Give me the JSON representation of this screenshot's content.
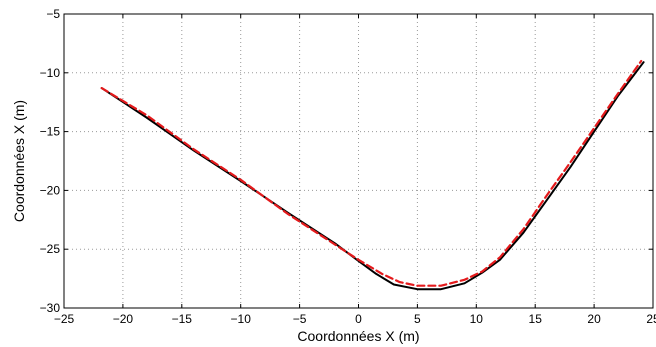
{
  "chart_data": {
    "type": "line",
    "title": "",
    "xlabel": "Coordonnées X (m)",
    "ylabel": "Coordonnées X (m)",
    "xlim": [
      -25,
      25
    ],
    "ylim": [
      -30,
      -5
    ],
    "grid": true,
    "x_ticks": [
      -25,
      -20,
      -15,
      -10,
      -5,
      0,
      5,
      10,
      15,
      20,
      25
    ],
    "y_ticks": [
      -30,
      -25,
      -20,
      -15,
      -10,
      -5
    ],
    "x_tick_labels": [
      "−25",
      "−20",
      "−15",
      "−10",
      "−5",
      "0",
      "5",
      "10",
      "15",
      "20",
      "25"
    ],
    "y_tick_labels": [
      "−30",
      "−25",
      "−20",
      "−15",
      "−10",
      "−5"
    ],
    "series": [
      {
        "style": "solid",
        "color": "#000000",
        "points": [
          [
            -21.8,
            -11.3
          ],
          [
            -18,
            -13.8
          ],
          [
            -14,
            -16.6
          ],
          [
            -10,
            -19.2
          ],
          [
            -6,
            -21.9
          ],
          [
            -2,
            -24.5
          ],
          [
            0,
            -26.0
          ],
          [
            1.5,
            -27.1
          ],
          [
            3,
            -28.0
          ],
          [
            5,
            -28.4
          ],
          [
            7,
            -28.4
          ],
          [
            9,
            -27.9
          ],
          [
            10.5,
            -27.0
          ],
          [
            12,
            -25.9
          ],
          [
            14,
            -23.6
          ],
          [
            16,
            -20.8
          ],
          [
            18,
            -18.0
          ],
          [
            20,
            -15.0
          ],
          [
            22,
            -12.0
          ],
          [
            24.2,
            -9.1
          ]
        ]
      },
      {
        "style": "dashed",
        "color": "#e41a1c",
        "points": [
          [
            -21.8,
            -11.3
          ],
          [
            -18,
            -13.6
          ],
          [
            -14,
            -16.5
          ],
          [
            -10,
            -19.1
          ],
          [
            -6,
            -22.0
          ],
          [
            -2,
            -24.6
          ],
          [
            0,
            -25.9
          ],
          [
            2,
            -27.1
          ],
          [
            3.5,
            -27.8
          ],
          [
            5,
            -28.1
          ],
          [
            7,
            -28.1
          ],
          [
            9,
            -27.6
          ],
          [
            10.5,
            -26.9
          ],
          [
            12,
            -25.7
          ],
          [
            14,
            -23.3
          ],
          [
            16,
            -20.4
          ],
          [
            18,
            -17.6
          ],
          [
            20,
            -14.7
          ],
          [
            22,
            -11.8
          ],
          [
            24,
            -9.0
          ]
        ]
      }
    ]
  }
}
